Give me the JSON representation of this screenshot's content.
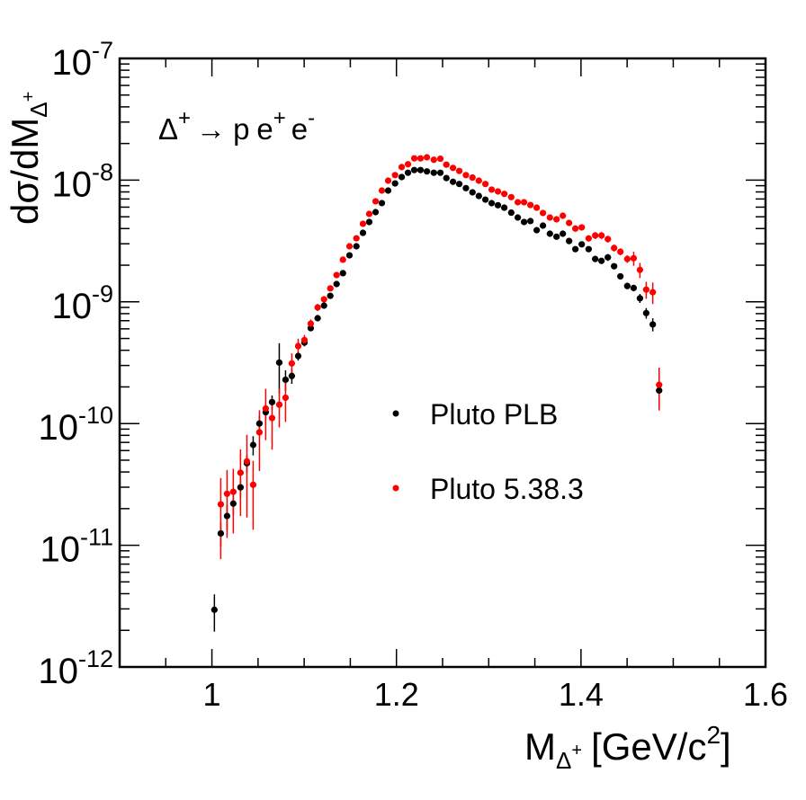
{
  "chart_data": {
    "type": "scatter",
    "title": "",
    "annotation": {
      "main": "Δ",
      "sup1": "+",
      "arrow": "→",
      "p": "p",
      "e1": "e",
      "sup2": "+",
      "e2": "e",
      "sup3": "-"
    },
    "xlabel": {
      "main": "M",
      "sub": "Δ",
      "subsup": "+",
      "unit": "[GeV/c",
      "unitsup": "2",
      "close": "]"
    },
    "ylabel": {
      "main": "dσ/dM",
      "sub": "Δ",
      "subsup": "+"
    },
    "xlim": [
      0.9,
      1.6
    ],
    "ylim": [
      1e-12,
      1e-07
    ],
    "yscale": "log",
    "grid": false,
    "xticks": [
      {
        "value": 1.0,
        "label": "1"
      },
      {
        "value": 1.2,
        "label": "1.2"
      },
      {
        "value": 1.4,
        "label": "1.4"
      },
      {
        "value": 1.6,
        "label": "1.6"
      }
    ],
    "yticks": [
      {
        "exp": -7,
        "base": "10",
        "sup": "-7"
      },
      {
        "exp": -8,
        "base": "10",
        "sup": "-8"
      },
      {
        "exp": -9,
        "base": "10",
        "sup": "-9"
      },
      {
        "exp": -10,
        "base": "10",
        "sup": "-10"
      },
      {
        "exp": -11,
        "base": "10",
        "sup": "-11"
      },
      {
        "exp": -12,
        "base": "10",
        "sup": "-12"
      }
    ],
    "legend": {
      "placement": "center-right"
    },
    "series": [
      {
        "name": "Pluto PLB",
        "color": "#000000",
        "x": [
          1.0027,
          1.0096,
          1.0164,
          1.0232,
          1.031,
          1.0379,
          1.0447,
          1.0515,
          1.0583,
          1.0652,
          1.073,
          1.0798,
          1.0866,
          1.0935,
          1.1003,
          1.1071,
          1.1146,
          1.1215,
          1.1283,
          1.1351,
          1.142,
          1.1491,
          1.1566,
          1.1637,
          1.1705,
          1.1774,
          1.1842,
          1.191,
          1.1985,
          1.2057,
          1.2125,
          1.2193,
          1.2261,
          1.233,
          1.2405,
          1.2476,
          1.2541,
          1.2613,
          1.2681,
          1.2753,
          1.2824,
          1.2893,
          1.2964,
          1.3032,
          1.31,
          1.3169,
          1.3244,
          1.3315,
          1.3383,
          1.3452,
          1.352,
          1.3588,
          1.3663,
          1.3735,
          1.3803,
          1.3871,
          1.3939,
          1.4008,
          1.4083,
          1.4154,
          1.4222,
          1.4291,
          1.4359,
          1.4427,
          1.4502,
          1.4571,
          1.4639,
          1.4707,
          1.4778,
          1.4847
        ],
        "y": [
          2.95e-12,
          1.25e-11,
          1.74e-11,
          2.2e-11,
          2.99e-11,
          4.72e-11,
          6.67e-11,
          1e-10,
          1.24e-10,
          1.5e-10,
          3.17e-10,
          2.29e-10,
          2.46e-10,
          3.59e-10,
          4.63e-10,
          6.08e-10,
          7.34e-10,
          9.31e-10,
          1.12e-09,
          1.4e-09,
          1.72e-09,
          2.41e-09,
          2.86e-09,
          3.69e-09,
          4.53e-09,
          5.46e-09,
          6.48e-09,
          8.21e-09,
          9.4e-09,
          1.06e-08,
          1.15e-08,
          1.21e-08,
          1.21e-08,
          1.18e-08,
          1.15e-08,
          1.15e-08,
          1.04e-08,
          9.69e-09,
          9.3e-09,
          8.59e-09,
          7.94e-09,
          7.41e-09,
          6.92e-09,
          6.47e-09,
          6.22e-09,
          5.94e-09,
          5.41e-09,
          4.93e-09,
          4.53e-09,
          4.61e-09,
          3.88e-09,
          4.23e-09,
          3.63e-09,
          3.43e-09,
          3.63e-09,
          3.16e-09,
          2.71e-09,
          2.97e-09,
          2.71e-09,
          2.25e-09,
          2.17e-09,
          2.32e-09,
          1.96e-09,
          1.62e-09,
          1.35e-09,
          1.3e-09,
          1.07e-09,
          8.08e-10,
          6.52e-10,
          1.87e-10
        ],
        "yerr": [
          1e-12,
          2.8e-12,
          4e-12,
          4.5e-12,
          5.5e-12,
          8e-12,
          1.2e-11,
          1.6e-11,
          1.8e-11,
          2e-11,
          1.4e-10,
          4.5e-11,
          3.4e-11,
          3e-11,
          3.2e-11,
          3.6e-11,
          3.6e-11,
          4e-11,
          4.4e-11,
          4.8e-11,
          5.6e-11,
          7e-11,
          7e-11,
          8e-11,
          9e-11,
          1e-10,
          1.1e-10,
          1.3e-10,
          1.4e-10,
          1.5e-10,
          1.6e-10,
          1.6e-10,
          1.6e-10,
          1.6e-10,
          1.6e-10,
          1.6e-10,
          1.5e-10,
          1.5e-10,
          1.4e-10,
          1.4e-10,
          1.3e-10,
          1.3e-10,
          1.2e-10,
          1.2e-10,
          1.2e-10,
          1.2e-10,
          1.1e-10,
          1.1e-10,
          1.1e-10,
          1.1e-10,
          1e-10,
          1.1e-10,
          1e-10,
          1e-10,
          1e-10,
          1e-10,
          9e-11,
          1e-10,
          1e-10,
          9e-11,
          9e-11,
          1.5e-10,
          9e-11,
          9e-11,
          8e-11,
          8e-11,
          9e-11,
          8e-11,
          8e-11,
          5.5e-11
        ]
      },
      {
        "name": "Pluto 5.38.3",
        "color": "#ff0000",
        "x": [
          1.0096,
          1.0164,
          1.0232,
          1.031,
          1.0379,
          1.0447,
          1.0515,
          1.0583,
          1.0652,
          1.073,
          1.0798,
          1.0866,
          1.0935,
          1.1003,
          1.1071,
          1.1146,
          1.1215,
          1.1283,
          1.1351,
          1.142,
          1.1491,
          1.1566,
          1.1637,
          1.1705,
          1.1774,
          1.1842,
          1.191,
          1.1985,
          1.2057,
          1.2125,
          1.2193,
          1.2261,
          1.233,
          1.2405,
          1.2476,
          1.2541,
          1.2613,
          1.2681,
          1.2753,
          1.2824,
          1.2893,
          1.2964,
          1.3032,
          1.31,
          1.3169,
          1.3244,
          1.3315,
          1.3383,
          1.3452,
          1.352,
          1.3588,
          1.3663,
          1.3735,
          1.3803,
          1.3871,
          1.3939,
          1.4008,
          1.4083,
          1.4154,
          1.4222,
          1.4291,
          1.4359,
          1.4427,
          1.4502,
          1.4571,
          1.4639,
          1.4707,
          1.4778,
          1.4847
        ],
        "y": [
          2.17e-11,
          2.65e-11,
          2.75e-11,
          3.94e-11,
          4.89e-11,
          3.14e-11,
          8.47e-11,
          1.33e-10,
          1.11e-10,
          1.43e-10,
          1.63e-10,
          3.12e-10,
          4.33e-10,
          4.85e-10,
          6.62e-10,
          9e-10,
          1.05e-09,
          1.29e-09,
          1.66e-09,
          2.22e-09,
          2.86e-09,
          3.33e-09,
          4.38e-09,
          5.28e-09,
          6.7e-09,
          8.21e-09,
          9.9e-09,
          1.1e-08,
          1.28e-08,
          1.35e-08,
          1.51e-08,
          1.51e-08,
          1.54e-08,
          1.47e-08,
          1.5e-08,
          1.34e-08,
          1.26e-08,
          1.19e-08,
          1.1e-08,
          1.05e-08,
          9.9e-09,
          9.3e-09,
          8.36e-09,
          8.07e-09,
          7.71e-09,
          7.25e-09,
          6.58e-09,
          6.58e-09,
          6.25e-09,
          5.94e-09,
          5.37e-09,
          4.93e-09,
          4.77e-09,
          5.1e-09,
          4.45e-09,
          4e-09,
          4.09e-09,
          3.32e-09,
          3.51e-09,
          3.51e-09,
          3.28e-09,
          2.77e-09,
          2.58e-09,
          2.25e-09,
          2.28e-09,
          1.83e-09,
          1.26e-09,
          1.2e-09,
          2.08e-10
        ],
        "yerr": [
          1.4e-11,
          1.5e-11,
          1.5e-11,
          2.2e-11,
          3.2e-11,
          1.8e-11,
          4.4e-11,
          6e-11,
          5e-11,
          5e-11,
          6e-11,
          6.5e-11,
          6.5e-11,
          5e-11,
          5.5e-11,
          6e-11,
          6e-11,
          6.5e-11,
          7e-11,
          8e-11,
          9e-11,
          9.5e-11,
          1.1e-10,
          1.2e-10,
          1.3e-10,
          1.5e-10,
          1.6e-10,
          1.7e-10,
          1.8e-10,
          1.9e-10,
          2e-10,
          2e-10,
          2e-10,
          2e-10,
          2e-10,
          1.9e-10,
          1.8e-10,
          1.8e-10,
          1.7e-10,
          1.7e-10,
          1.6e-10,
          1.6e-10,
          1.5e-10,
          1.5e-10,
          1.4e-10,
          1.4e-10,
          1.4e-10,
          1.4e-10,
          1.3e-10,
          1.3e-10,
          1.3e-10,
          1.2e-10,
          1.2e-10,
          1.3e-10,
          1.2e-10,
          1.2e-10,
          1.2e-10,
          1.1e-10,
          2.3e-10,
          2.3e-10,
          2.1e-10,
          1.8e-10,
          1.7e-10,
          1.6e-10,
          3e-10,
          2.6e-10,
          2e-10,
          2.4e-10,
          8e-11
        ]
      }
    ]
  }
}
